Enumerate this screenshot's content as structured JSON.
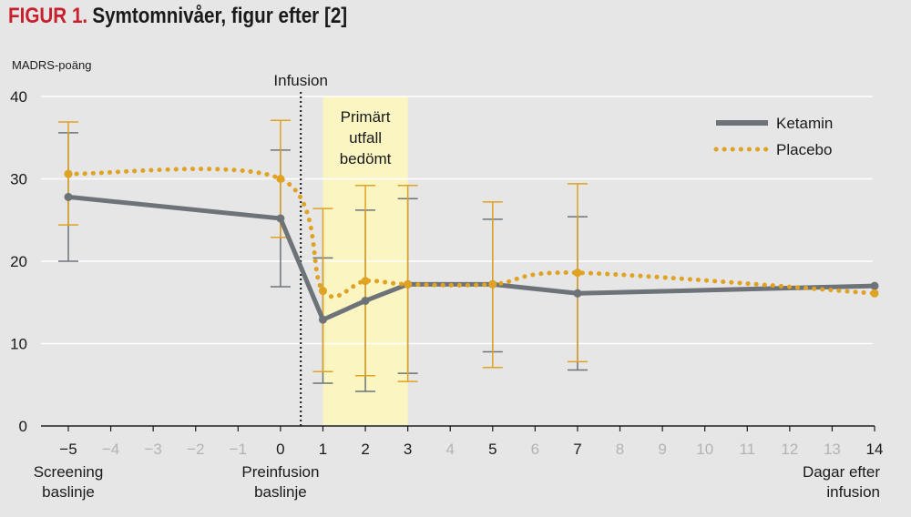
{
  "figure": {
    "number_label": "FIGUR 1.",
    "title": "Symtomnivåer, figur efter [2]"
  },
  "colors": {
    "background": "#e6e6e6",
    "ketamin": "#6d7378",
    "placebo": "#e0a222",
    "highlight": "#fbf5c2",
    "grid": "#ffffff",
    "title_accent": "#c8202f"
  },
  "chart_data": {
    "type": "line",
    "title": "Symtomnivåer, figur efter [2]",
    "ylabel": "MADRS-poäng",
    "xlabel": "Dagar efter infusion",
    "ylim": [
      0,
      40
    ],
    "y_ticks": [
      "0",
      "10",
      "20",
      "30",
      "40"
    ],
    "grid": "horizontal",
    "x_ticks": [
      {
        "label": "−5",
        "emph": true
      },
      {
        "label": "−4",
        "emph": false
      },
      {
        "label": "−3",
        "emph": false
      },
      {
        "label": "−2",
        "emph": false
      },
      {
        "label": "−1",
        "emph": false
      },
      {
        "label": "0",
        "emph": true
      },
      {
        "label": "1",
        "emph": true
      },
      {
        "label": "2",
        "emph": true
      },
      {
        "label": "3",
        "emph": true
      },
      {
        "label": "4",
        "emph": false
      },
      {
        "label": "5",
        "emph": true
      },
      {
        "label": "6",
        "emph": false
      },
      {
        "label": "7",
        "emph": true
      },
      {
        "label": "8",
        "emph": false
      },
      {
        "label": "9",
        "emph": false
      },
      {
        "label": "10",
        "emph": false
      },
      {
        "label": "11",
        "emph": false
      },
      {
        "label": "12",
        "emph": false
      },
      {
        "label": "13",
        "emph": false
      },
      {
        "label": "14",
        "emph": true
      }
    ],
    "x_captions": [
      {
        "lines": [
          "Screening",
          "baslinje"
        ],
        "tick_index": 0,
        "align": "middle"
      },
      {
        "lines": [
          "Preinfusion",
          "baslinje"
        ],
        "tick_index": 5,
        "align": "middle"
      },
      {
        "lines": [
          "Dagar efter",
          "infusion"
        ],
        "tick_index": 19,
        "align": "end"
      }
    ],
    "infusion_marker": {
      "label": "Infusion",
      "between_tick_index": [
        5,
        6
      ]
    },
    "highlight": {
      "from_tick_index": 6,
      "to_tick_index": 8,
      "lines": [
        "Primärt",
        "utfall",
        "bedömt"
      ]
    },
    "legend_position": "top-right",
    "series": [
      {
        "name": "Ketamin",
        "style": "solid",
        "points": [
          {
            "tick_index": 0,
            "y": 27.8,
            "lo": 20.0,
            "hi": 35.6
          },
          {
            "tick_index": 5,
            "y": 25.2,
            "lo": 16.9,
            "hi": 33.5
          },
          {
            "tick_index": 6,
            "y": 12.9,
            "lo": 5.2,
            "hi": 20.4
          },
          {
            "tick_index": 7,
            "y": 15.2,
            "lo": 4.2,
            "hi": 26.2
          },
          {
            "tick_index": 8,
            "y": 17.2,
            "lo": 6.4,
            "hi": 27.6
          },
          {
            "tick_index": 10,
            "y": 17.2,
            "lo": 9.0,
            "hi": 25.1
          },
          {
            "tick_index": 12,
            "y": 16.1,
            "lo": 6.8,
            "hi": 25.4
          },
          {
            "tick_index": 19,
            "y": 17.0
          }
        ]
      },
      {
        "name": "Placebo",
        "style": "dotted",
        "points": [
          {
            "tick_index": 0,
            "y": 30.6,
            "lo": 24.4,
            "hi": 36.9
          },
          {
            "tick_index": 5,
            "y": 30.0,
            "lo": 22.9,
            "hi": 37.1
          },
          {
            "tick_index": 6,
            "y": 16.4,
            "lo": 6.6,
            "hi": 26.4
          },
          {
            "tick_index": 7,
            "y": 17.6,
            "lo": 6.1,
            "hi": 29.2
          },
          {
            "tick_index": 8,
            "y": 17.2,
            "lo": 5.4,
            "hi": 29.2
          },
          {
            "tick_index": 10,
            "y": 17.2,
            "lo": 7.1,
            "hi": 27.2
          },
          {
            "tick_index": 12,
            "y": 18.6,
            "lo": 7.8,
            "hi": 29.4
          },
          {
            "tick_index": 19,
            "y": 16.1
          }
        ]
      }
    ]
  }
}
